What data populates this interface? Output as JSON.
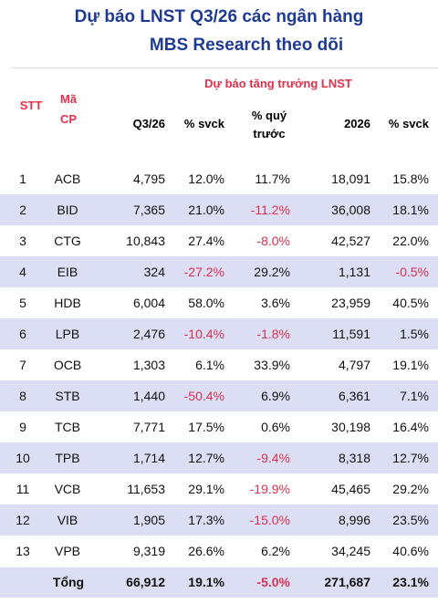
{
  "header": {
    "title_line1": "Dự báo LNST Q3/26 các ngân hàng",
    "title_line2": "MBS Research theo dõi"
  },
  "table": {
    "col_stt": "STT",
    "col_code": "Mã CP",
    "group_header": "Dự báo tăng trưởng LNST",
    "columns": [
      "Q3/26",
      "% svck",
      "% quý trước",
      "2026",
      "% svck"
    ],
    "rows": [
      [
        "1",
        "ACB",
        "4,795",
        "12.0%",
        "11.7%",
        "18,091",
        "15.8%"
      ],
      [
        "2",
        "BID",
        "7,365",
        "21.0%",
        "-11.2%",
        "36,008",
        "18.1%"
      ],
      [
        "3",
        "CTG",
        "10,843",
        "27.4%",
        "-8.0%",
        "42,527",
        "22.0%"
      ],
      [
        "4",
        "EIB",
        "324",
        "-27.2%",
        "29.2%",
        "1,131",
        "-0.5%"
      ],
      [
        "5",
        "HDB",
        "6,004",
        "58.0%",
        "3.6%",
        "23,959",
        "40.5%"
      ],
      [
        "6",
        "LPB",
        "2,476",
        "-10.4%",
        "-1.8%",
        "11,591",
        "1.5%"
      ],
      [
        "7",
        "OCB",
        "1,303",
        "6.1%",
        "33.9%",
        "4,797",
        "19.1%"
      ],
      [
        "8",
        "STB",
        "1,440",
        "-50.4%",
        "6.9%",
        "6,361",
        "7.1%"
      ],
      [
        "9",
        "TCB",
        "7,771",
        "17.5%",
        "0.6%",
        "30,198",
        "16.4%"
      ],
      [
        "10",
        "TPB",
        "1,714",
        "12.7%",
        "-9.4%",
        "8,318",
        "12.7%"
      ],
      [
        "11",
        "VCB",
        "11,653",
        "29.1%",
        "-19.9%",
        "45,465",
        "29.2%"
      ],
      [
        "12",
        "VIB",
        "1,905",
        "17.3%",
        "-15.0%",
        "8,996",
        "23.5%"
      ],
      [
        "13",
        "VPB",
        "9,319",
        "26.6%",
        "6.2%",
        "34,245",
        "40.6%"
      ]
    ],
    "total": {
      "label": "Tổng",
      "values": [
        "66,912",
        "19.1%",
        "-5.0%",
        "271,687",
        "23.1%"
      ]
    }
  }
}
